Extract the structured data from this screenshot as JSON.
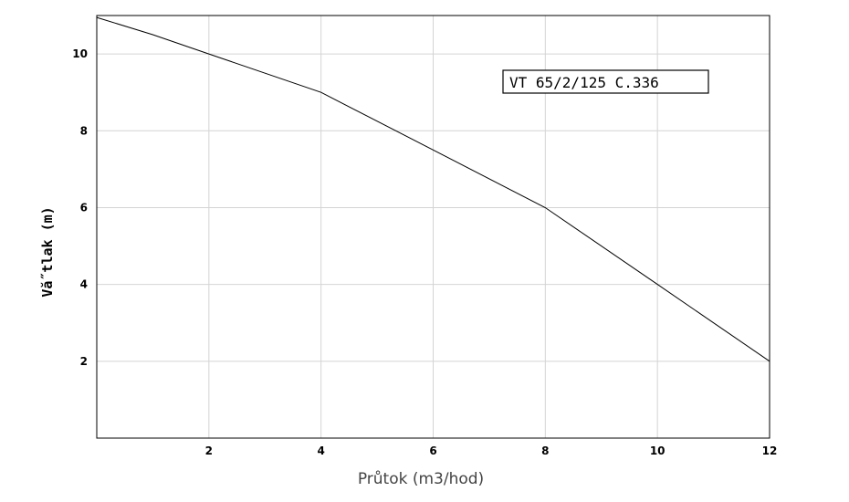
{
  "chart_data": {
    "type": "line",
    "title": "",
    "xlabel": "Průtok (m3/hod)",
    "ylabel": "Vă˝tlak (m)",
    "xlim": [
      0,
      12
    ],
    "ylim": [
      0,
      11
    ],
    "xticks": [
      2,
      4,
      6,
      8,
      10,
      12
    ],
    "yticks": [
      2,
      4,
      6,
      8,
      10
    ],
    "grid": true,
    "legend_position": "top-right",
    "series": [
      {
        "name": "VT 65/2/125 C.336",
        "color": "#000000",
        "x": [
          0,
          1,
          2,
          4,
          6,
          8,
          10,
          12
        ],
        "y": [
          10.95,
          10.5,
          10,
          9,
          7.5,
          6,
          4,
          2
        ]
      }
    ]
  }
}
